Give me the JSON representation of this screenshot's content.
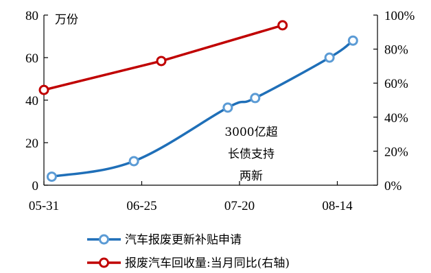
{
  "chart_data": {
    "type": "line",
    "title": "",
    "ylabel": "万份",
    "x_tick_labels": [
      "05-31",
      "06-25",
      "07-20",
      "08-14"
    ],
    "ylim_left": [
      0,
      80
    ],
    "ylim_right": [
      0,
      100
    ],
    "y_ticks_left": [
      "0",
      "20",
      "40",
      "60",
      "80"
    ],
    "y_ticks_right": [
      "0%",
      "20%",
      "40%",
      "60%",
      "80%",
      "100%"
    ],
    "annotation": [
      "3000亿超",
      "长债支持",
      "两新"
    ],
    "series": [
      {
        "name": "汽车报废更新补贴申请",
        "axis": "left",
        "color": "#1F6FB8",
        "marker_fill": "#ffffff",
        "marker_stroke": "#5B9BD5",
        "x": [
          "2024-06-02",
          "2024-06-23",
          "2024-07-17",
          "2024-07-24",
          "2024-08-12",
          "2024-08-18"
        ],
        "values": [
          4,
          11.3,
          36.5,
          41,
          60,
          68
        ]
      },
      {
        "name": "报废汽车回收量:当月同比(右轴)",
        "axis": "right",
        "color": "#C00000",
        "marker_fill": "#ffffff",
        "marker_stroke": "#C00000",
        "x": [
          "2024-05-31",
          "2024-06-30",
          "2024-07-31"
        ],
        "values": [
          56,
          73,
          94
        ]
      }
    ],
    "legend_position": "bottom"
  }
}
